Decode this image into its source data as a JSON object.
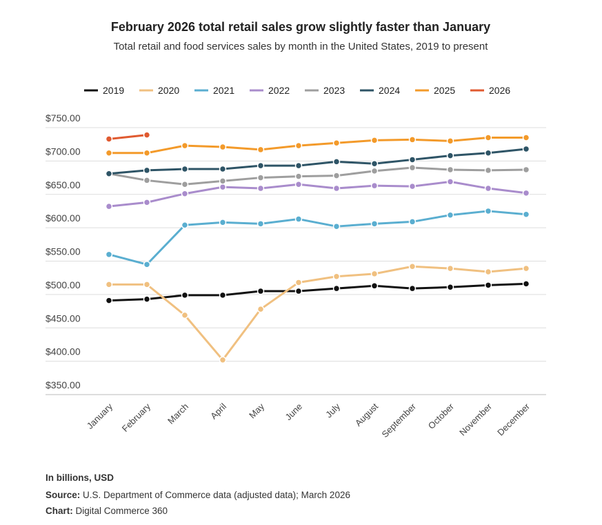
{
  "chart_data": {
    "type": "line",
    "title": "February 2026 total retail sales grow slightly faster than January",
    "subtitle": "Total retail and food services sales by month in the United States, 2019 to present",
    "categories": [
      "January",
      "February",
      "March",
      "April",
      "May",
      "June",
      "July",
      "August",
      "September",
      "October",
      "November",
      "December"
    ],
    "series": [
      {
        "name": "2019",
        "color": "#111111",
        "values": [
          491,
          493,
          499,
          499,
          505,
          505,
          509,
          513,
          509,
          511,
          514,
          516
        ]
      },
      {
        "name": "2020",
        "color": "#f0c080",
        "values": [
          515,
          515,
          469,
          402,
          478,
          518,
          527,
          531,
          542,
          539,
          534,
          539
        ]
      },
      {
        "name": "2021",
        "color": "#5aaed0",
        "values": [
          560,
          545,
          604,
          608,
          606,
          613,
          602,
          606,
          609,
          619,
          625,
          620
        ]
      },
      {
        "name": "2022",
        "color": "#a98ccc",
        "values": [
          632,
          638,
          651,
          661,
          659,
          665,
          659,
          663,
          662,
          669,
          659,
          652
        ]
      },
      {
        "name": "2023",
        "color": "#9e9e9e",
        "values": [
          681,
          671,
          665,
          670,
          675,
          677,
          678,
          685,
          690,
          687,
          686,
          687
        ]
      },
      {
        "name": "2024",
        "color": "#2e5466",
        "values": [
          681,
          686,
          688,
          688,
          693,
          693,
          699,
          696,
          702,
          708,
          712,
          718
        ]
      },
      {
        "name": "2025",
        "color": "#f39a2a",
        "values": [
          712,
          712,
          723,
          721,
          717,
          723,
          727,
          731,
          732,
          730,
          735,
          735
        ]
      },
      {
        "name": "2026",
        "color": "#e05a30",
        "values": [
          733,
          739,
          null,
          null,
          null,
          null,
          null,
          null,
          null,
          null,
          null,
          null
        ]
      }
    ],
    "ylim": [
      350,
      750
    ],
    "yticks": [
      {
        "value": 350,
        "label": "$350.00"
      },
      {
        "value": 400,
        "label": "$400.00"
      },
      {
        "value": 450,
        "label": "$450.00"
      },
      {
        "value": 500,
        "label": "$500.00"
      },
      {
        "value": 550,
        "label": "$550.00"
      },
      {
        "value": 600,
        "label": "$600.00"
      },
      {
        "value": 650,
        "label": "$650.00"
      },
      {
        "value": 700,
        "label": "$700.00"
      },
      {
        "value": 750,
        "label": "$750.00"
      }
    ],
    "grid": true,
    "legend": "top"
  },
  "footer": {
    "units": "In billions, USD",
    "source_label": "Source:",
    "source": "U.S. Department of Commerce data (adjusted data); March 2026",
    "chart_label": "Chart:",
    "chart": "Digital Commerce 360"
  }
}
